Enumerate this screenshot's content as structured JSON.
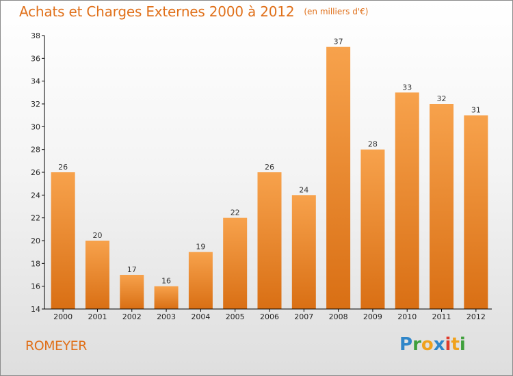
{
  "header": {
    "title": "Achats et Charges Externes 2000 à 2012",
    "subtitle": "(en milliers d'€)"
  },
  "footer": {
    "commune": "ROMEYER",
    "brand_letters": [
      {
        "ch": "P",
        "color": "#2f86c9"
      },
      {
        "ch": "r",
        "color": "#3fa03c"
      },
      {
        "ch": "o",
        "color": "#f0a21d"
      },
      {
        "ch": "x",
        "color": "#2f86c9"
      },
      {
        "ch": "i",
        "color": "#e03b2c"
      },
      {
        "ch": "t",
        "color": "#f0a21d"
      },
      {
        "ch": "i",
        "color": "#3fa03c"
      }
    ]
  },
  "chart_data": {
    "type": "bar",
    "title": "Achats et Charges Externes 2000 à 2012",
    "subtitle": "(en milliers d'€)",
    "categories": [
      "2000",
      "2001",
      "2002",
      "2003",
      "2004",
      "2005",
      "2006",
      "2007",
      "2008",
      "2009",
      "2010",
      "2011",
      "2012"
    ],
    "values": [
      26,
      20,
      17,
      16,
      19,
      22,
      26,
      24,
      37,
      28,
      33,
      32,
      31
    ],
    "ylim": [
      14,
      38
    ],
    "yticks": [
      14,
      16,
      18,
      20,
      22,
      24,
      26,
      28,
      30,
      32,
      34,
      36,
      38
    ],
    "grid": false,
    "bar_color_top": "#f7a24c",
    "bar_color_bottom": "#d96f14",
    "axis_color": "#000000"
  }
}
